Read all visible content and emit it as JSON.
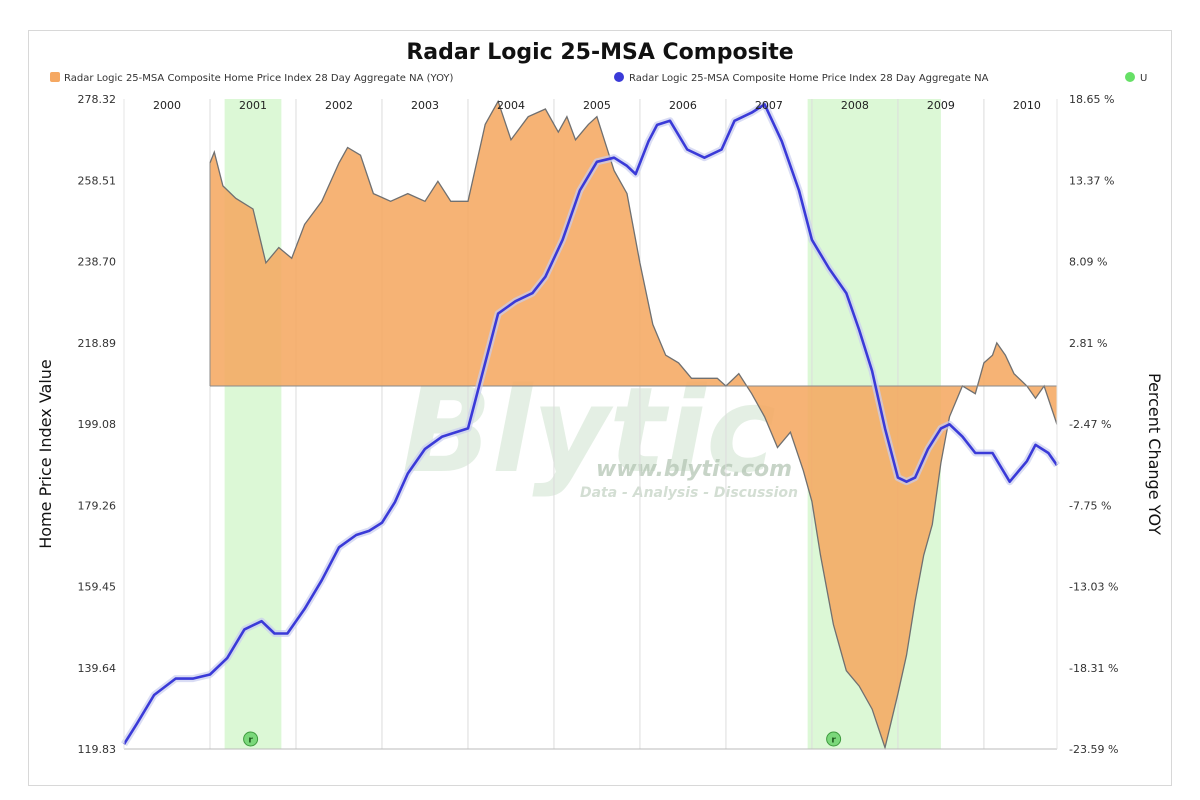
{
  "chart_data": {
    "type": "line",
    "title": "Radar Logic 25-MSA Composite",
    "legend": {
      "placement": "top",
      "items": [
        {
          "label": "Radar Logic 25-MSA Composite Home Price Index 28 Day Aggregate NA (YOY)",
          "color": "#f5a862"
        },
        {
          "label": "Radar Logic 25-MSA Composite Home Price Index 28 Day Aggregate NA",
          "color": "#3a3ad8"
        },
        {
          "label": "U",
          "color": "#66e066"
        }
      ]
    },
    "ylabel_left": "Home Price Index Value",
    "ylabel_right": "Percent Change YOY",
    "xlim": [
      2000.0,
      2010.85
    ],
    "ylim_left": [
      119.83,
      278.32
    ],
    "ylim_right": [
      -23.59,
      18.65
    ],
    "left_ticks": [
      "278.32",
      "258.51",
      "238.70",
      "218.89",
      "199.08",
      "179.26",
      "159.45",
      "139.64",
      "119.83"
    ],
    "right_ticks": [
      "18.65 %",
      "13.37 %",
      "8.09 %",
      "2.81 %",
      "-2.47 %",
      "-7.75 %",
      "-13.03 %",
      "-18.31 %",
      "-23.59 %"
    ],
    "year_labels": [
      {
        "label": "2000",
        "x": 2000.5
      },
      {
        "label": "2001",
        "x": 2001.5
      },
      {
        "label": "2002",
        "x": 2002.5
      },
      {
        "label": "2003",
        "x": 2003.5
      },
      {
        "label": "2004",
        "x": 2004.5
      },
      {
        "label": "2005",
        "x": 2005.5
      },
      {
        "label": "2006",
        "x": 2006.5
      },
      {
        "label": "2007",
        "x": 2007.5
      },
      {
        "label": "2008",
        "x": 2008.5
      },
      {
        "label": "2009",
        "x": 2009.5
      },
      {
        "label": "2010",
        "x": 2010.5
      }
    ],
    "year_lines": [
      2001,
      2002,
      2003,
      2004,
      2005,
      2006,
      2007,
      2008,
      2009,
      2010
    ],
    "recessions": [
      {
        "start": 2001.17,
        "end": 2001.83
      },
      {
        "start": 2007.95,
        "end": 2009.5
      }
    ],
    "recession_marker": "r",
    "watermark": {
      "logo": "Blytic",
      "url": "www.blytic.com",
      "tagline": "Data - Analysis - Discussion"
    },
    "series": [
      {
        "name": "Radar Logic 25-MSA Composite Home Price Index 28 Day Aggregate NA (YOY)",
        "axis": "right",
        "kind": "area",
        "baseline": 0,
        "x": [
          2001.0,
          2001.05,
          2001.15,
          2001.3,
          2001.5,
          2001.65,
          2001.8,
          2001.95,
          2002.1,
          2002.3,
          2002.5,
          2002.6,
          2002.75,
          2002.9,
          2003.1,
          2003.3,
          2003.5,
          2003.65,
          2003.8,
          2003.9,
          2004.0,
          2004.1,
          2004.2,
          2004.35,
          2004.5,
          2004.7,
          2004.9,
          2005.05,
          2005.15,
          2005.25,
          2005.4,
          2005.5,
          2005.7,
          2005.85,
          2006.0,
          2006.15,
          2006.3,
          2006.45,
          2006.6,
          2006.75,
          2006.9,
          2007.0,
          2007.15,
          2007.3,
          2007.45,
          2007.6,
          2007.75,
          2007.9,
          2008.0,
          2008.1,
          2008.25,
          2008.4,
          2008.55,
          2008.7,
          2008.85,
          2009.0,
          2009.1,
          2009.2,
          2009.3,
          2009.4,
          2009.5,
          2009.6,
          2009.75,
          2009.9,
          2010.0,
          2010.1,
          2010.15,
          2010.25,
          2010.35,
          2010.5,
          2010.6,
          2010.7,
          2010.85
        ],
        "y": [
          14.5,
          15.2,
          13.0,
          12.2,
          11.5,
          8.0,
          9.0,
          8.3,
          10.5,
          12.0,
          14.5,
          15.5,
          15.0,
          12.5,
          12.0,
          12.5,
          12.0,
          13.3,
          12.0,
          12.0,
          12.0,
          14.5,
          17.0,
          18.5,
          16.0,
          17.5,
          18.0,
          16.5,
          17.5,
          16.0,
          17.0,
          17.5,
          14.0,
          12.5,
          8.0,
          4.0,
          2.0,
          1.5,
          0.5,
          0.5,
          0.5,
          0.0,
          0.8,
          -0.5,
          -2.0,
          -4.0,
          -3.0,
          -5.5,
          -7.5,
          -11.0,
          -15.5,
          -18.5,
          -19.5,
          -21.0,
          -23.5,
          -20.0,
          -17.5,
          -14.0,
          -11.0,
          -9.0,
          -5.0,
          -2.0,
          0.0,
          -0.5,
          1.5,
          2.0,
          2.8,
          2.0,
          0.8,
          0.0,
          -0.8,
          0.0,
          -2.5
        ]
      },
      {
        "name": "Radar Logic 25-MSA Composite Home Price Index 28 Day Aggregate NA",
        "axis": "left",
        "kind": "line",
        "x": [
          2000.0,
          2000.15,
          2000.35,
          2000.6,
          2000.8,
          2001.0,
          2001.2,
          2001.4,
          2001.6,
          2001.75,
          2001.9,
          2002.1,
          2002.3,
          2002.5,
          2002.7,
          2002.85,
          2003.0,
          2003.15,
          2003.3,
          2003.5,
          2003.7,
          2003.85,
          2004.0,
          2004.15,
          2004.35,
          2004.55,
          2004.75,
          2004.9,
          2005.1,
          2005.3,
          2005.5,
          2005.7,
          2005.85,
          2005.95,
          2006.1,
          2006.2,
          2006.35,
          2006.55,
          2006.75,
          2006.95,
          2007.1,
          2007.3,
          2007.45,
          2007.65,
          2007.85,
          2008.0,
          2008.2,
          2008.4,
          2008.55,
          2008.7,
          2008.85,
          2009.0,
          2009.1,
          2009.2,
          2009.35,
          2009.5,
          2009.6,
          2009.75,
          2009.9,
          2010.1,
          2010.3,
          2010.5,
          2010.6,
          2010.75,
          2010.85
        ],
        "y": [
          121.0,
          126.0,
          133.0,
          137.0,
          137.0,
          138.0,
          142.0,
          149.0,
          151.0,
          148.0,
          148.0,
          154.0,
          161.0,
          169.0,
          172.0,
          173.0,
          175.0,
          180.0,
          187.0,
          193.0,
          196.0,
          197.0,
          198.0,
          210.0,
          226.0,
          229.0,
          231.0,
          235.0,
          244.0,
          256.0,
          263.0,
          264.0,
          262.0,
          260.0,
          268.0,
          272.0,
          273.0,
          266.0,
          264.0,
          266.0,
          273.0,
          275.0,
          277.0,
          268.0,
          256.0,
          244.0,
          237.0,
          231.0,
          222.0,
          212.0,
          198.0,
          186.0,
          185.0,
          186.0,
          193.0,
          198.0,
          199.0,
          196.0,
          192.0,
          192.0,
          185.0,
          190.0,
          194.0,
          192.0,
          189.0
        ]
      }
    ]
  }
}
